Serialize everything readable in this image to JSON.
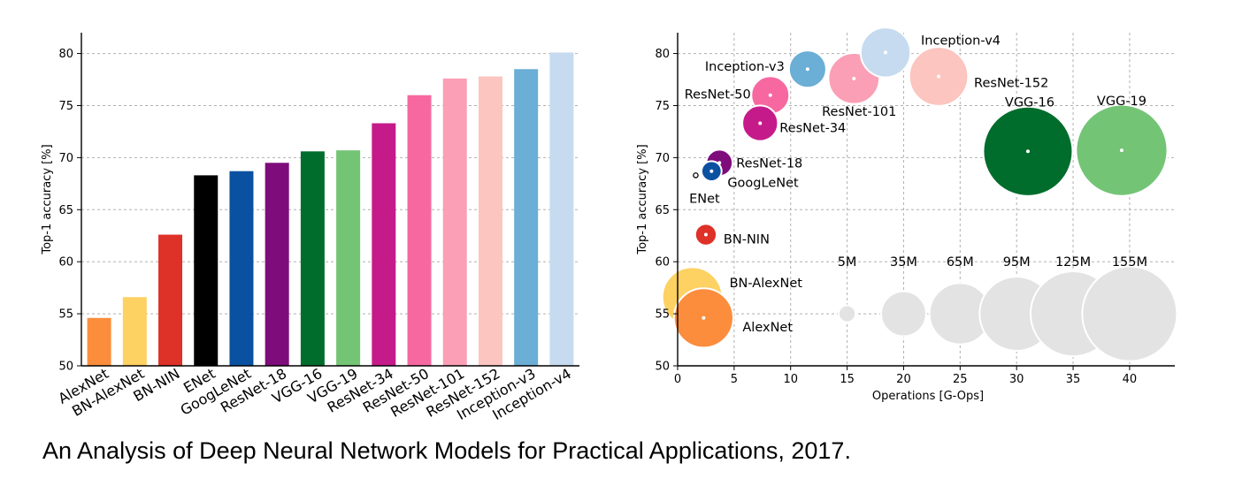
{
  "caption": "An Analysis of Deep Neural Network Models for Practical Applications, 2017.",
  "chart_data": [
    {
      "type": "bar",
      "ylabel": "Top-1 accuracy [%]",
      "ylim": [
        50,
        82
      ],
      "yticks": [
        50,
        55,
        60,
        65,
        70,
        75,
        80
      ],
      "grid": true,
      "categories": [
        "AlexNet",
        "BN-AlexNet",
        "BN-NIN",
        "ENet",
        "GoogLeNet",
        "ResNet-18",
        "VGG-16",
        "VGG-19",
        "ResNet-34",
        "ResNet-50",
        "ResNet-101",
        "ResNet-152",
        "Inception-v3",
        "Inception-v4"
      ],
      "values": [
        54.6,
        56.6,
        62.6,
        68.3,
        68.7,
        69.5,
        70.6,
        70.7,
        73.3,
        76.0,
        77.6,
        77.8,
        78.5,
        80.1
      ],
      "colors": [
        "#fb8d3d",
        "#fdd162",
        "#de3128",
        "#000000",
        "#0b51a1",
        "#7e0c7b",
        "#006d2c",
        "#74c476",
        "#c51b8a",
        "#f768a1",
        "#fa9fb5",
        "#fcc5c0",
        "#6baed6",
        "#c6dbef"
      ]
    },
    {
      "type": "scatter",
      "xlabel": "Operations [G-Ops]",
      "ylabel": "Top-1 accuracy [%]",
      "xlim": [
        0,
        44
      ],
      "ylim": [
        50,
        82
      ],
      "xticks": [
        0,
        5,
        10,
        15,
        20,
        25,
        30,
        35,
        40
      ],
      "yticks": [
        50,
        55,
        60,
        65,
        70,
        75,
        80
      ],
      "grid": true,
      "points": [
        {
          "name": "AlexNet",
          "x": 2.3,
          "y": 54.6,
          "params_m": 61,
          "color": "#fb8d3d"
        },
        {
          "name": "BN-AlexNet",
          "x": 1.3,
          "y": 56.6,
          "params_m": 62,
          "color": "#fdd162"
        },
        {
          "name": "BN-NIN",
          "x": 2.5,
          "y": 62.6,
          "params_m": 8,
          "color": "#de3128"
        },
        {
          "name": "ENet",
          "x": 1.6,
          "y": 68.3,
          "params_m": 1,
          "color": "#000000"
        },
        {
          "name": "GoogLeNet",
          "x": 3.0,
          "y": 68.7,
          "params_m": 7,
          "color": "#0b51a1"
        },
        {
          "name": "ResNet-18",
          "x": 3.7,
          "y": 69.5,
          "params_m": 12,
          "color": "#7e0c7b"
        },
        {
          "name": "ResNet-34",
          "x": 7.3,
          "y": 73.3,
          "params_m": 22,
          "color": "#c51b8a"
        },
        {
          "name": "ResNet-50",
          "x": 8.2,
          "y": 76.0,
          "params_m": 25,
          "color": "#f768a1"
        },
        {
          "name": "Inception-v3",
          "x": 11.5,
          "y": 78.5,
          "params_m": 24,
          "color": "#6baed6"
        },
        {
          "name": "ResNet-101",
          "x": 15.6,
          "y": 77.6,
          "params_m": 45,
          "color": "#fa9fb5"
        },
        {
          "name": "Inception-v4",
          "x": 18.4,
          "y": 80.1,
          "params_m": 43,
          "color": "#c6dbef"
        },
        {
          "name": "ResNet-152",
          "x": 23.1,
          "y": 77.8,
          "params_m": 60,
          "color": "#fcc5c0"
        },
        {
          "name": "VGG-16",
          "x": 31.0,
          "y": 70.6,
          "params_m": 138,
          "color": "#006d2c"
        },
        {
          "name": "VGG-19",
          "x": 39.3,
          "y": 70.7,
          "params_m": 144,
          "color": "#74c476"
        }
      ],
      "size_legend": [
        {
          "label": "5M",
          "x": 15,
          "y": 55,
          "params_m": 5
        },
        {
          "label": "35M",
          "x": 20,
          "y": 55,
          "params_m": 35
        },
        {
          "label": "65M",
          "x": 25,
          "y": 55,
          "params_m": 65
        },
        {
          "label": "95M",
          "x": 30,
          "y": 55,
          "params_m": 95
        },
        {
          "label": "125M",
          "x": 35,
          "y": 55,
          "params_m": 125
        },
        {
          "label": "155M",
          "x": 40,
          "y": 55,
          "params_m": 155
        }
      ],
      "size_legend_color": "#e3e3e3"
    }
  ]
}
